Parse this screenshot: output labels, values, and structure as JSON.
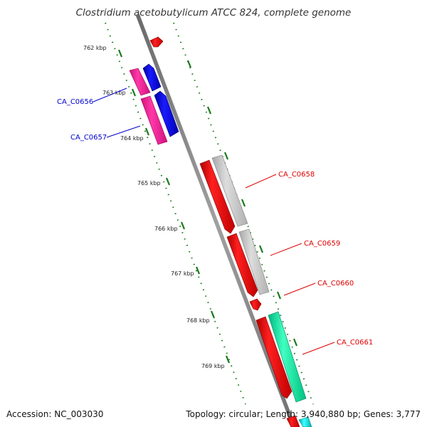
{
  "title": "Clostridium acetobutylicum ATCC 824, complete genome",
  "footer": {
    "accession": "Accession: NC_003030",
    "summary": "Topology: circular; Length: 3,940,880 bp; Genes: 3,777"
  },
  "ticks": [
    "762 kbp",
    "763 kbp",
    "764 kbp",
    "765 kbp",
    "766 kbp",
    "767 kbp",
    "768 kbp",
    "769 kbp"
  ],
  "genes": [
    {
      "id": "CA_C0656",
      "label": "CA_C0656",
      "color": "#0000cc"
    },
    {
      "id": "CA_C0657",
      "label": "CA_C0657",
      "color": "#0000cc"
    },
    {
      "id": "CA_C0658",
      "label": "CA_C0658",
      "color": "#dd0000"
    },
    {
      "id": "CA_C0659",
      "label": "CA_C0659",
      "color": "#dd0000"
    },
    {
      "id": "CA_C0660",
      "label": "CA_C0660",
      "color": "#dd0000"
    },
    {
      "id": "CA_C0661",
      "label": "CA_C0661",
      "color": "#dd0000"
    }
  ],
  "colors": {
    "backbone": "#808080",
    "tick": "#1a7a1a",
    "cds_forward": "#ff0000",
    "cds_blue": "#0000ee",
    "pink": "#ff1493",
    "gray": "#c0c0c0",
    "teal": "#00e6a0",
    "cyan": "#00cccc"
  }
}
